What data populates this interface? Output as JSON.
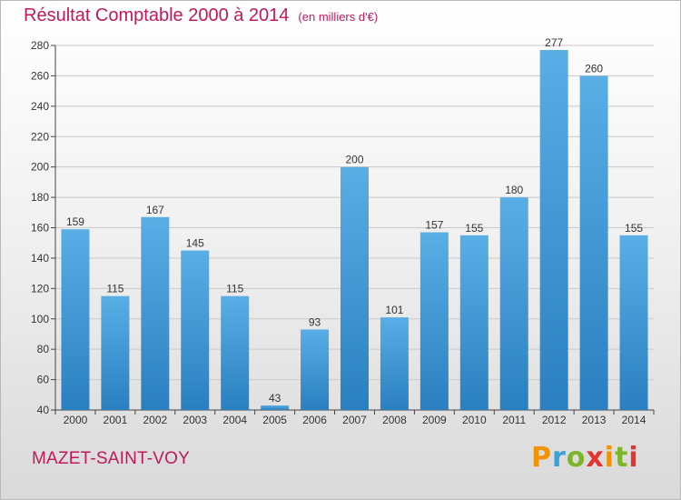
{
  "title": {
    "main": "Résultat Comptable 2000 à 2014",
    "sub": "(en milliers d'€)"
  },
  "footer": {
    "city": "MAZET-SAINT-VOY",
    "logo_letters": [
      "P",
      "r",
      "o",
      "x",
      "i",
      "t",
      "i"
    ],
    "logo_colors": [
      "#f29200",
      "#3aa0d8",
      "#7cb526",
      "#e3342f",
      "#f29200",
      "#7cb526",
      "#e3342f"
    ]
  },
  "colors": {
    "bar_top": "#5aaee6",
    "bar_bottom": "#2a7fc0",
    "grid": "#c9c9c9",
    "title": "#c2185b"
  },
  "chart_data": {
    "type": "bar",
    "title": "Résultat Comptable 2000 à 2014",
    "subtitle": "(en milliers d'€)",
    "categories": [
      "2000",
      "2001",
      "2002",
      "2003",
      "2004",
      "2005",
      "2006",
      "2007",
      "2008",
      "2009",
      "2010",
      "2011",
      "2012",
      "2013",
      "2014"
    ],
    "values": [
      159,
      115,
      167,
      145,
      115,
      43,
      93,
      200,
      101,
      157,
      155,
      180,
      277,
      260,
      155
    ],
    "ylim": [
      40,
      280
    ],
    "yticks": [
      40,
      60,
      80,
      100,
      120,
      140,
      160,
      180,
      200,
      220,
      240,
      260,
      280
    ],
    "grid": true,
    "xlabel": "",
    "ylabel": ""
  }
}
